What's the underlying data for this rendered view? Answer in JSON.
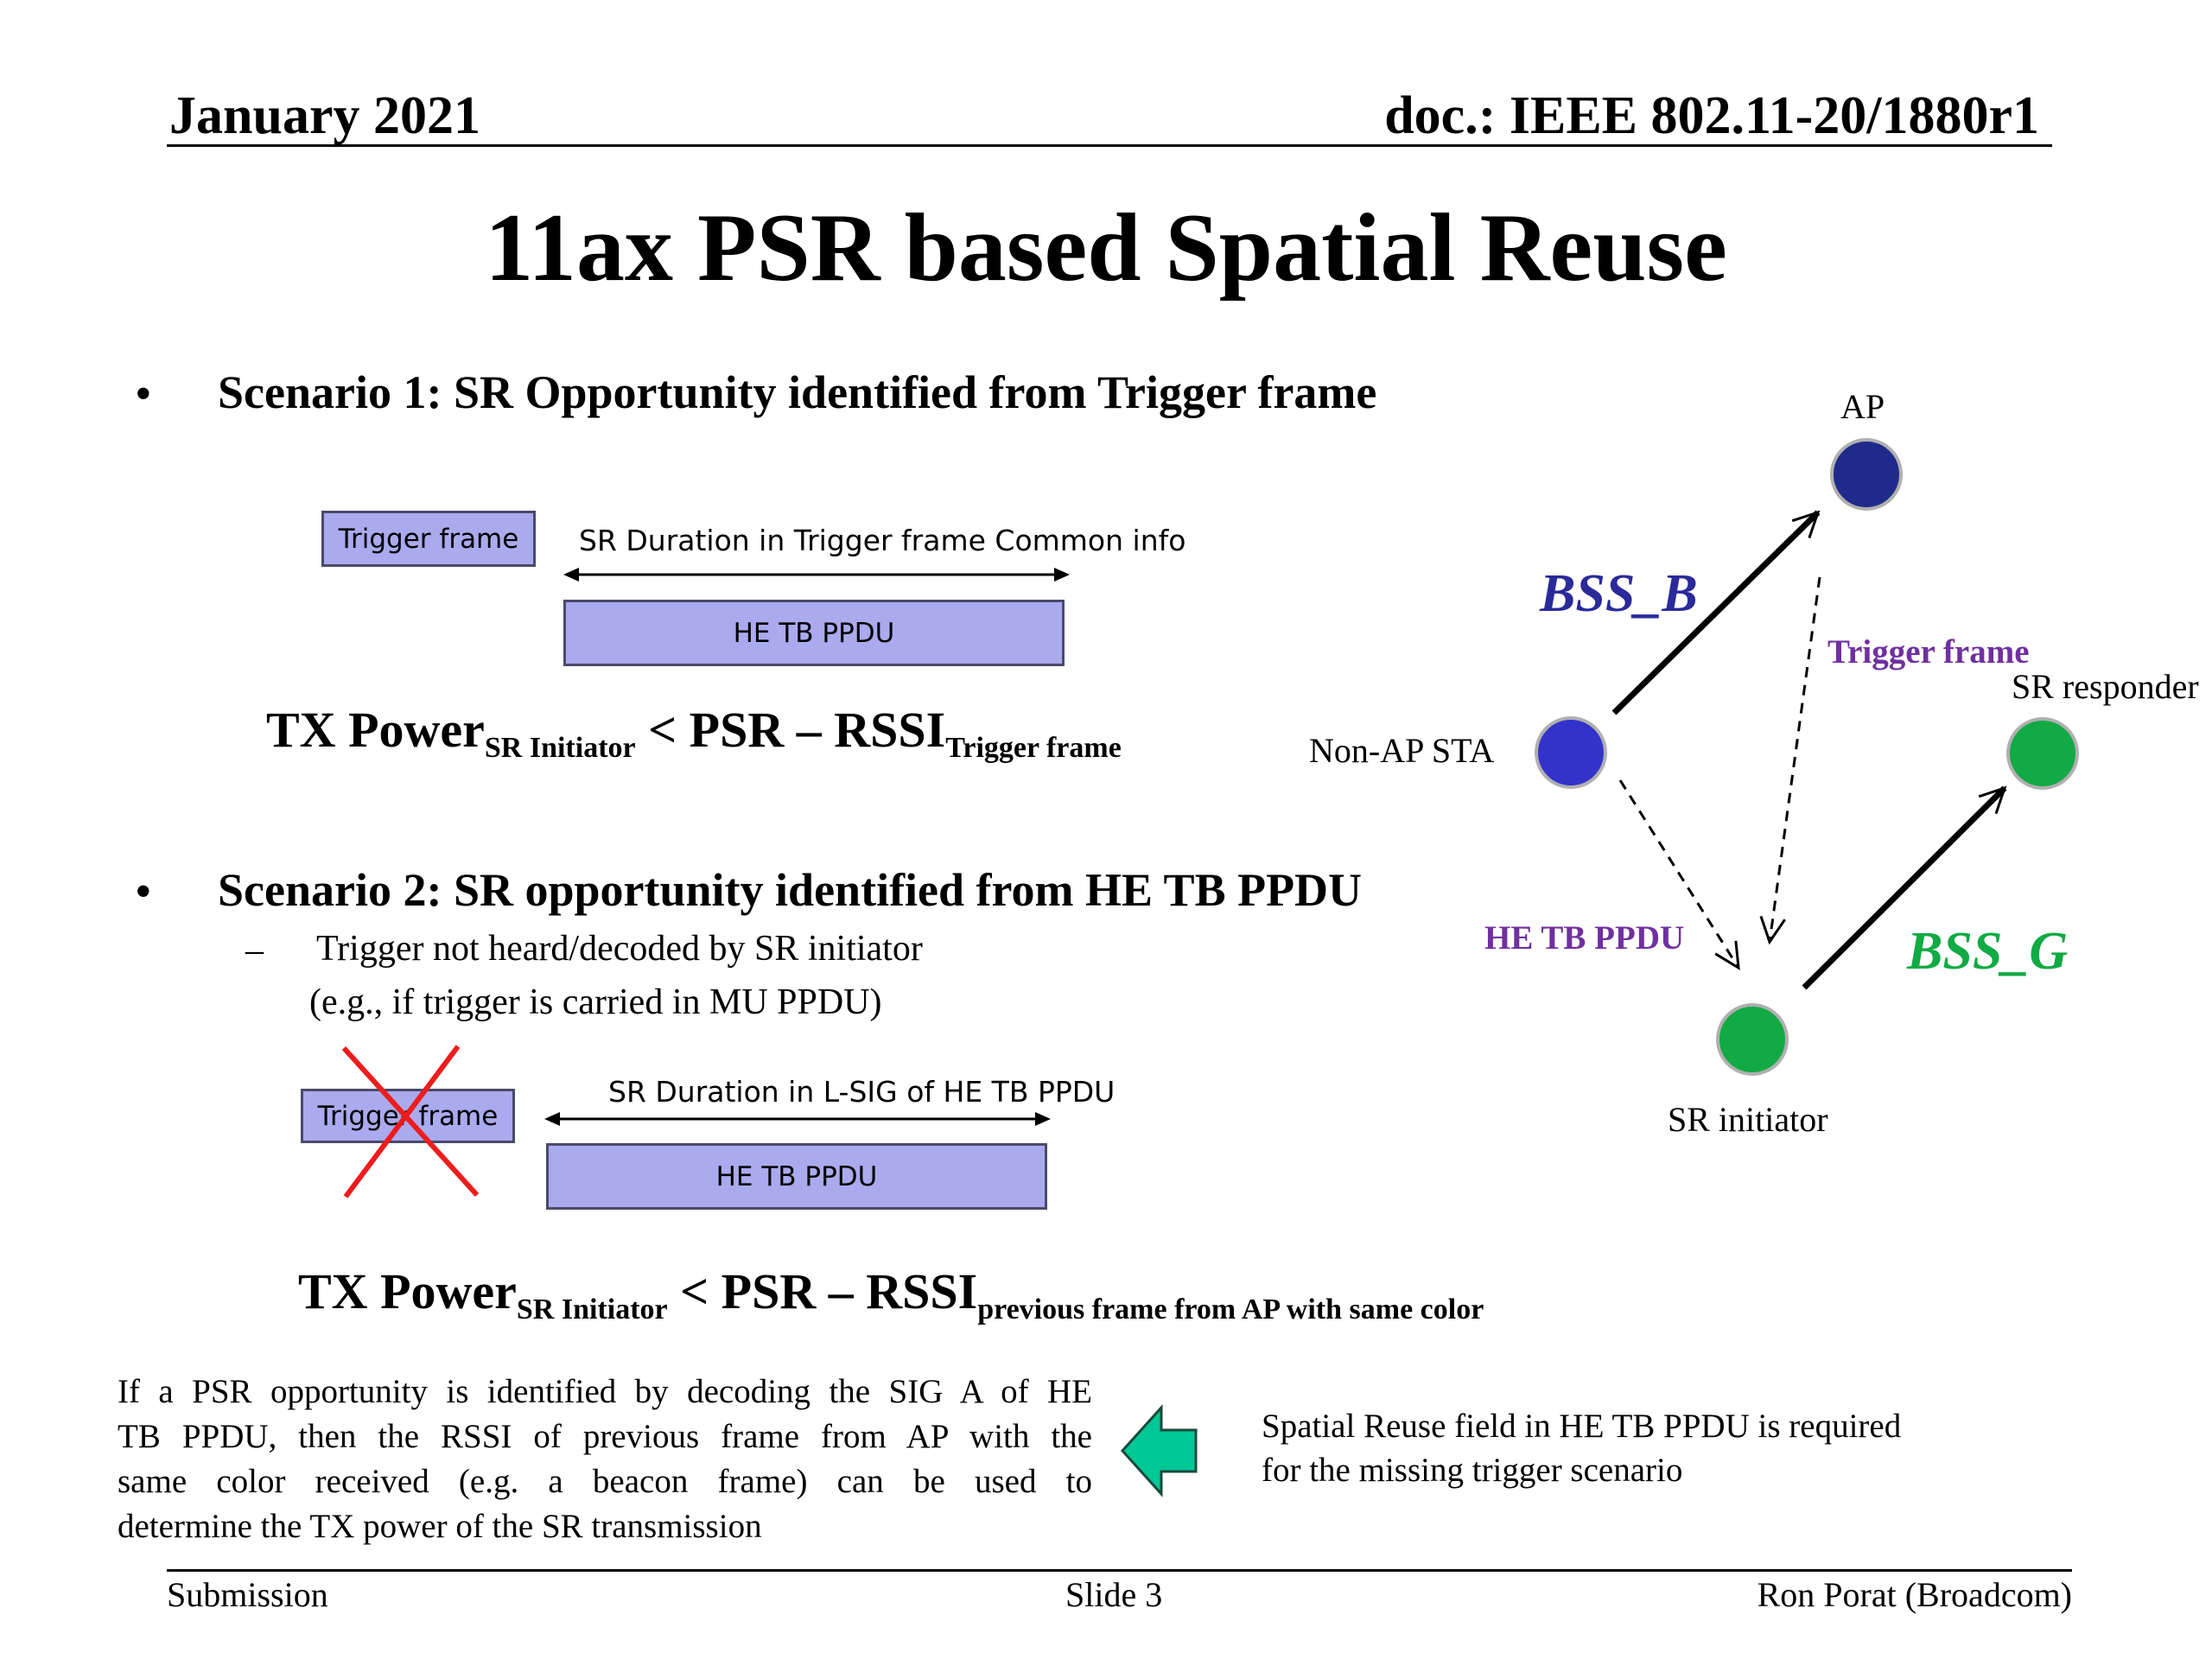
{
  "header": {
    "date": "January 2021",
    "doc": "doc.: IEEE 802.11-20/1880r1"
  },
  "title": "11ax PSR based Spatial Reuse",
  "scenario1": {
    "bullet": "Scenario 1: SR Opportunity identified from Trigger frame",
    "trigger_box": "Trigger frame",
    "duration_label": "SR Duration in Trigger frame Common info",
    "ppdu_box": "HE TB PPDU",
    "formula": {
      "main": "TX Power",
      "sub1": "SR Initiator",
      "middle": " < PSR – RSSI",
      "sub2": "Trigger frame"
    }
  },
  "scenario2": {
    "bullet": "Scenario 2: SR opportunity identified from HE TB PPDU",
    "sub_dash": "–",
    "sub_line1": "Trigger not heard/decoded by SR initiator",
    "sub_line2": "(e.g., if trigger is carried in MU PPDU)",
    "trigger_box": "Trigger frame",
    "duration_label": "SR Duration in L-SIG of HE TB PPDU",
    "ppdu_box": "HE TB PPDU",
    "formula": {
      "main": "TX Power",
      "sub1": "SR Initiator",
      "middle": " < PSR – RSSI",
      "sub2": "previous frame from AP with same color"
    }
  },
  "paragraph": {
    "lines": [
      "If a PSR opportunity is identified by decoding the SIG A of HE",
      "TB PPDU, then the RSSI of previous frame from AP with the",
      "same color received (e.g. a beacon frame) can be used to",
      "determine the TX power of the SR transmission"
    ]
  },
  "note": {
    "lines": [
      "Spatial Reuse field in HE TB PPDU is required",
      "for the missing trigger scenario"
    ]
  },
  "diagram": {
    "ap_label": "AP",
    "non_ap_label": "Non-AP STA",
    "sr_responder_label": "SR responder",
    "sr_initiator_label": "SR initiator",
    "bss_b": "BSS_B",
    "bss_g": "BSS_G",
    "trigger_frame_tag": "Trigger frame",
    "he_tb_ppdu_tag": "HE TB PPDU",
    "colors": {
      "ap": "#1f2a8a",
      "non_ap": "#3333cc",
      "green_nodes": "#11aa44",
      "bss_b": "#2a2a9a",
      "bss_g": "#11aa44",
      "tags": "#7030a0"
    }
  },
  "footer": {
    "left": "Submission",
    "center": "Slide 3",
    "right": "Ron Porat (Broadcom)"
  },
  "colors": {
    "box_fill": "#aaaaee",
    "box_border": "#4a4a6a",
    "cross": "#ee1c1c",
    "arrow_fill": "#00c896"
  }
}
